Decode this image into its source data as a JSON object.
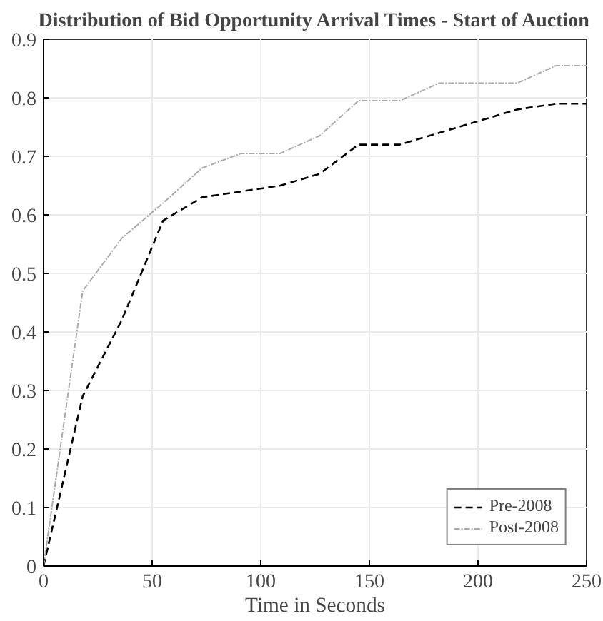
{
  "chart_data": {
    "type": "line",
    "title": "Distribution of Bid Opportunity Arrival Times - Start of Auction",
    "xlabel": "Time in Seconds",
    "x": [
      0,
      18,
      36,
      55,
      73,
      91,
      109,
      127,
      145,
      164,
      182,
      200,
      218,
      236,
      250
    ],
    "series": [
      {
        "name": "Pre-2008",
        "color": "#000000",
        "line_style": "dashed",
        "values": [
          0,
          0.29,
          0.42,
          0.59,
          0.63,
          0.64,
          0.65,
          0.67,
          0.72,
          0.72,
          0.74,
          0.76,
          0.78,
          0.79,
          0.79
        ]
      },
      {
        "name": "Post-2008",
        "color": "#aaaaaa",
        "line_style": "dotted",
        "values": [
          0,
          0.47,
          0.56,
          0.62,
          0.68,
          0.705,
          0.705,
          0.735,
          0.795,
          0.795,
          0.825,
          0.825,
          0.825,
          0.855,
          0.855
        ]
      }
    ],
    "xlim": [
      0,
      250
    ],
    "ylim": [
      0,
      0.9
    ],
    "xticks": [
      0,
      50,
      100,
      150,
      200,
      250
    ],
    "yticks": [
      0,
      0.1,
      0.2,
      0.3,
      0.4,
      0.5,
      0.6,
      0.7,
      0.8,
      0.9
    ],
    "grid": true,
    "legend": "bottom right",
    "marker": "none"
  }
}
